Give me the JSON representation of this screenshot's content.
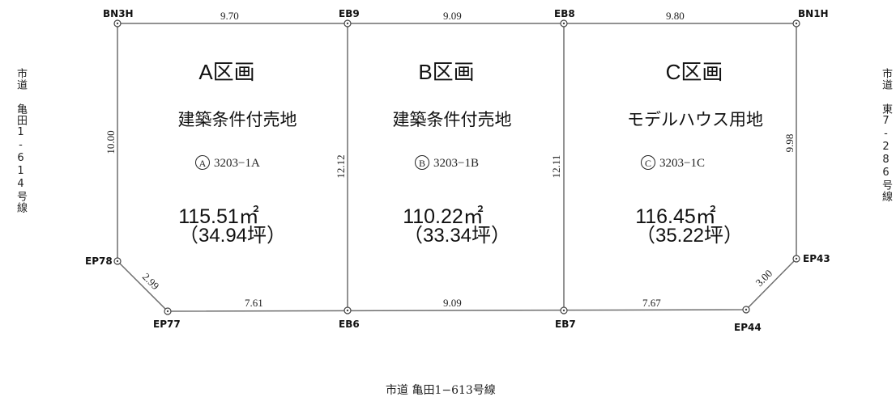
{
  "points": {
    "bn3h": "BN3H",
    "eb9": "EB9",
    "eb8": "EB8",
    "bn1h": "BN1H",
    "ep78": "EP78",
    "ep77": "EP77",
    "eb6": "EB6",
    "eb7": "EB7",
    "ep44": "EP44",
    "ep43": "EP43"
  },
  "dimensions": {
    "top_a": "9.70",
    "top_b": "9.09",
    "top_c": "9.80",
    "left": "10.00",
    "mid_ab": "12.12",
    "mid_bc": "12.11",
    "right": "9.98",
    "diag_left": "2.99",
    "diag_right": "3.00",
    "bottom_a": "7.61",
    "bottom_b": "9.09",
    "bottom_c": "7.67"
  },
  "lots": {
    "a": {
      "title": "A区画",
      "use": "建築条件付売地",
      "mark": "A",
      "number": "3203−1A",
      "area": "115.51㎡",
      "tsubo": "（34.94坪）"
    },
    "b": {
      "title": "B区画",
      "use": "建築条件付売地",
      "mark": "B",
      "number": "3203−1B",
      "area": "110.22㎡",
      "tsubo": "（33.34坪）"
    },
    "c": {
      "title": "C区画",
      "use": "モデルハウス用地",
      "mark": "C",
      "number": "3203−1C",
      "area": "116.45㎡",
      "tsubo": "（35.22坪）"
    }
  },
  "roads": {
    "left": "市道 亀田1-614号線",
    "right": "市道 東7-286号線",
    "bottom": "市道 亀田1−613号線"
  }
}
